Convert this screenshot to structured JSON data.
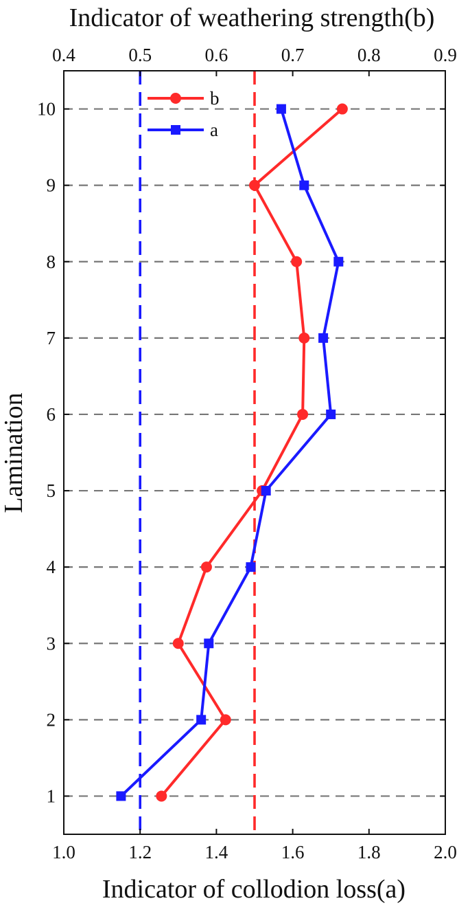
{
  "chart_data": {
    "type": "line",
    "title_top": "Indicator of  weathering strength(b)",
    "xlabel_bottom": "Indicator of collodion loss(a)",
    "ylabel": "Lamination",
    "x_bottom": {
      "lim": [
        1.0,
        2.0
      ],
      "ticks": [
        "1.0",
        "1.2",
        "1.4",
        "1.6",
        "1.8",
        "2.0"
      ]
    },
    "x_top": {
      "lim": [
        0.4,
        0.9
      ],
      "ticks": [
        "0.4",
        "0.5",
        "0.6",
        "0.7",
        "0.8",
        "0.9"
      ]
    },
    "y": {
      "lim": [
        0.5,
        10.5
      ],
      "ticks": [
        "1",
        "2",
        "3",
        "4",
        "5",
        "6",
        "7",
        "8",
        "9",
        "10"
      ]
    },
    "grid": "horizontal dashed at each lamination",
    "legend_position": "top-left",
    "reference_lines": [
      {
        "axis": "bottom",
        "value": 1.2,
        "color": "#1a1aff",
        "style": "dashed"
      },
      {
        "axis": "bottom",
        "value": 1.5,
        "color": "#ff2a2a",
        "style": "dashed"
      }
    ],
    "series": [
      {
        "name": "b",
        "axis": "top",
        "color": "#ff2a2a",
        "marker": "circle",
        "y": [
          10,
          9,
          8,
          7,
          6,
          5,
          4,
          3,
          2,
          1
        ],
        "values": [
          0.765,
          0.65,
          0.705,
          0.715,
          0.713,
          0.66,
          0.587,
          0.55,
          0.612,
          0.528
        ]
      },
      {
        "name": "a",
        "axis": "bottom",
        "color": "#1a1aff",
        "marker": "square",
        "y": [
          10,
          9,
          8,
          7,
          6,
          5,
          4,
          3,
          2,
          1
        ],
        "values": [
          1.57,
          1.63,
          1.72,
          1.68,
          1.7,
          1.53,
          1.49,
          1.38,
          1.36,
          1.15
        ]
      }
    ]
  }
}
